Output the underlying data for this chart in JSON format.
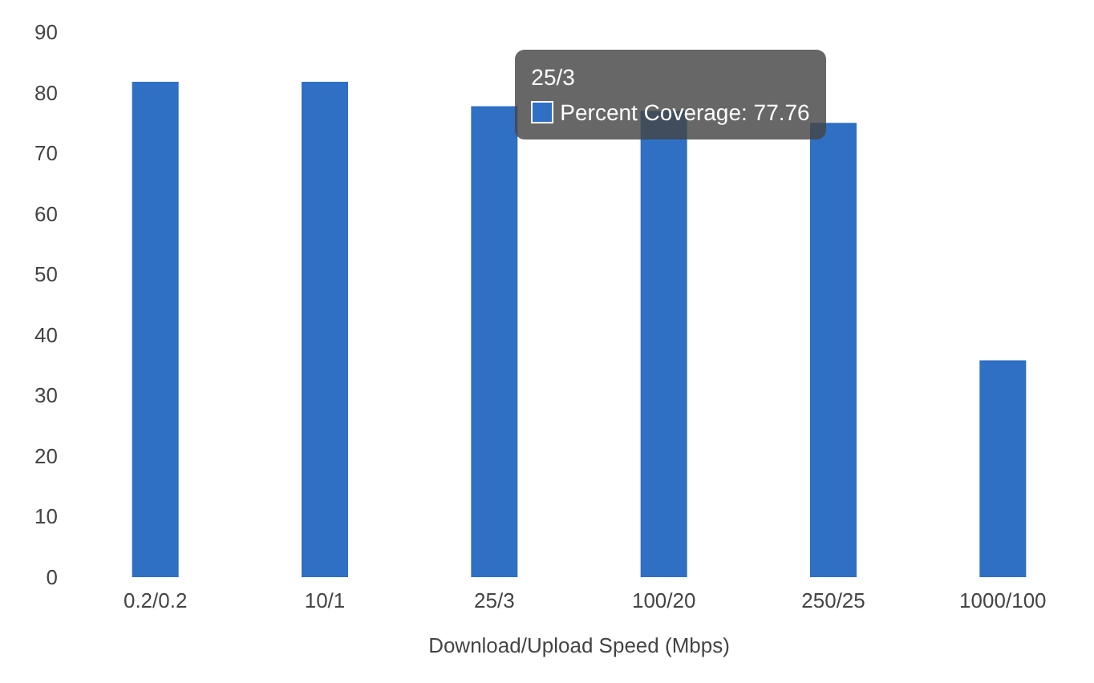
{
  "chart_data": {
    "type": "bar",
    "xlabel": "Download/Upload Speed (Mbps)",
    "categories": [
      "0.2/0.2",
      "10/1",
      "25/3",
      "100/20",
      "250/25",
      "1000/100"
    ],
    "series": [
      {
        "name": "Percent Coverage",
        "color": "#2f6fc4",
        "values": [
          81.8,
          81.8,
          77.76,
          77,
          75,
          35.8
        ],
        "value_labels": [
          null,
          null,
          ": 77.76",
          null,
          null,
          null
        ]
      }
    ],
    "ylim": [
      0,
      90
    ],
    "yticks": [
      0,
      10,
      20,
      30,
      40,
      50,
      60,
      70,
      80,
      90
    ],
    "grid": false,
    "legend": false,
    "annotations": [
      {
        "text": "25/3",
        "x": "25/3",
        "y": 77.76
      }
    ]
  }
}
